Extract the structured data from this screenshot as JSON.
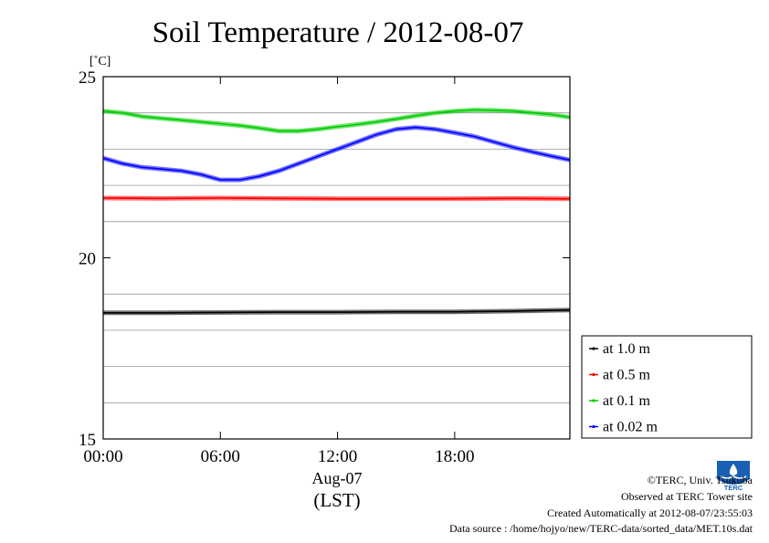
{
  "chart_data": {
    "type": "line",
    "title": "Soil Temperature / 2012-08-07",
    "ylabel": "[˚C]",
    "xlabel_date": "Aug-07",
    "xlabel_tz": "(LST)",
    "ylim": [
      15,
      25
    ],
    "xlim_hours": [
      0,
      23.9
    ],
    "y_ticks": [
      15,
      20,
      25
    ],
    "y_minor_grid": [
      16,
      17,
      18,
      19,
      21,
      22,
      23,
      24
    ],
    "x_ticks": [
      {
        "hour": 0,
        "label": "00:00"
      },
      {
        "hour": 6,
        "label": "06:00"
      },
      {
        "hour": 12,
        "label": "12:00"
      },
      {
        "hour": 18,
        "label": "18:00"
      }
    ],
    "grid": "horizontal",
    "legend_position": "bottom-right",
    "series": [
      {
        "name": "at 1.0 m",
        "color": "#000000",
        "hours": [
          0,
          3,
          6,
          9,
          12,
          15,
          18,
          21,
          23.9
        ],
        "values": [
          18.48,
          18.48,
          18.49,
          18.5,
          18.5,
          18.51,
          18.51,
          18.53,
          18.56
        ]
      },
      {
        "name": "at 0.5 m",
        "color": "#ff0000",
        "hours": [
          0,
          3,
          6,
          9,
          12,
          15,
          18,
          21,
          23.9
        ],
        "values": [
          21.65,
          21.64,
          21.65,
          21.64,
          21.63,
          21.63,
          21.63,
          21.64,
          21.63
        ]
      },
      {
        "name": "at 0.1 m",
        "color": "#00cc00",
        "hours": [
          0,
          1,
          2,
          3,
          4,
          5,
          6,
          7,
          8,
          9,
          10,
          11,
          12,
          13,
          14,
          15,
          16,
          17,
          18,
          19,
          20,
          21,
          22,
          23,
          23.9
        ],
        "values": [
          24.05,
          24.0,
          23.9,
          23.85,
          23.8,
          23.75,
          23.7,
          23.65,
          23.58,
          23.5,
          23.5,
          23.55,
          23.62,
          23.68,
          23.75,
          23.83,
          23.92,
          24.0,
          24.05,
          24.08,
          24.07,
          24.05,
          24.0,
          23.95,
          23.88
        ]
      },
      {
        "name": "at 0.02 m",
        "color": "#0000ff",
        "hours": [
          0,
          1,
          2,
          3,
          4,
          5,
          6,
          7,
          8,
          9,
          10,
          11,
          12,
          13,
          14,
          15,
          16,
          17,
          18,
          19,
          20,
          21,
          22,
          23,
          23.9
        ],
        "values": [
          22.75,
          22.6,
          22.5,
          22.45,
          22.4,
          22.3,
          22.15,
          22.15,
          22.25,
          22.4,
          22.6,
          22.8,
          23.0,
          23.2,
          23.4,
          23.55,
          23.6,
          23.55,
          23.45,
          23.35,
          23.2,
          23.05,
          22.92,
          22.8,
          22.7
        ]
      }
    ]
  },
  "footer": {
    "copyright": "©TERC, Univ. Tsukuba",
    "observed": "Observed at TERC Tower site",
    "created": "Created Automatically at 2012-08-07/23:55:03",
    "source": "Data source : /home/hojyo/new/TERC-data/sorted_data/MET.10s.dat",
    "logo_text": "TERC"
  }
}
